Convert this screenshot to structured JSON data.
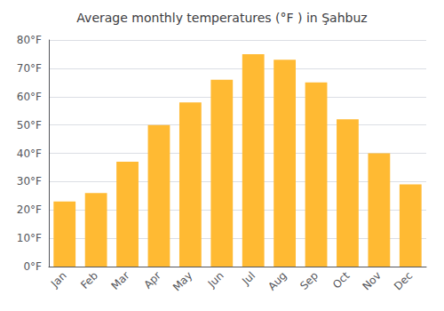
{
  "chart_data": {
    "type": "bar",
    "title": "Average monthly temperatures (°F ) in Şahbuz",
    "categories": [
      "Jan",
      "Feb",
      "Mar",
      "Apr",
      "May",
      "Jun",
      "Jul",
      "Aug",
      "Sep",
      "Oct",
      "Nov",
      "Dec"
    ],
    "values": [
      23,
      26,
      37,
      50,
      58,
      66,
      75,
      73,
      65,
      52,
      40,
      29
    ],
    "color": "#FFBA33",
    "ylim": [
      0,
      80
    ],
    "yticks": [
      {
        "value": 0,
        "label": "0°F"
      },
      {
        "value": 10,
        "label": "10°F"
      },
      {
        "value": 20,
        "label": "20°F"
      },
      {
        "value": 30,
        "label": "30°F"
      },
      {
        "value": 40,
        "label": "40°F"
      },
      {
        "value": 50,
        "label": "50°F"
      },
      {
        "value": 60,
        "label": "60°F"
      },
      {
        "value": 70,
        "label": "70°F"
      },
      {
        "value": 80,
        "label": "80°F"
      }
    ],
    "grid": true
  }
}
